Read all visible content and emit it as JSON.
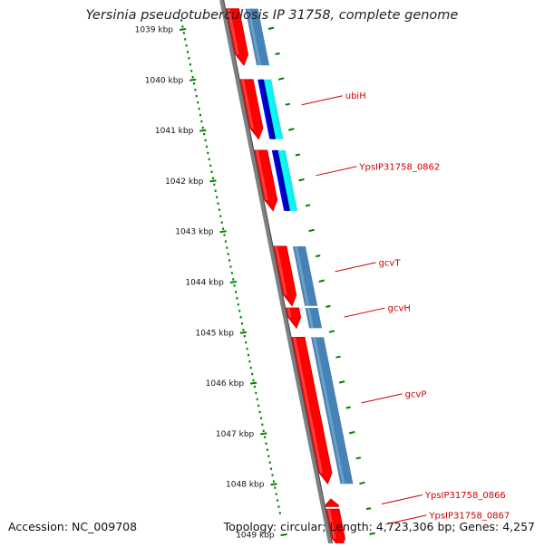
{
  "title": "Yersinia pseudotuberculosis IP 31758, complete genome",
  "footer": {
    "accession": "Accession: NC_009708",
    "topology": "Topology: circular; Length: 4,723,306 bp; Genes: 4,257"
  },
  "colors": {
    "background": "#ffffff",
    "backbone": "#808080",
    "backbone_edge": "#4a4a4a",
    "cds_forward": "#ff0000",
    "cds_forward_dark": "#cc0000",
    "cds_forward_light": "#ff6a6a",
    "steelblue": "#4682b4",
    "steelblue_light": "#86b2d8",
    "blue": "#0000ff",
    "navy": "#00008b",
    "cyan": "#00ffff",
    "cyan_dark": "#40d0d8",
    "gc_skew": "#008000",
    "label_text": "#cc0000",
    "label_line": "#cc0000",
    "kbp_text": "#111111"
  },
  "scale_labels": [
    {
      "text": "1039 kbp",
      "kbp": 1039
    },
    {
      "text": "1040 kbp",
      "kbp": 1040
    },
    {
      "text": "1041 kbp",
      "kbp": 1041
    },
    {
      "text": "1042 kbp",
      "kbp": 1042
    },
    {
      "text": "1043 kbp",
      "kbp": 1043
    },
    {
      "text": "1044 kbp",
      "kbp": 1044
    },
    {
      "text": "1045 kbp",
      "kbp": 1045
    },
    {
      "text": "1046 kbp",
      "kbp": 1046
    },
    {
      "text": "1047 kbp",
      "kbp": 1047
    },
    {
      "text": "1048 kbp",
      "kbp": 1048
    },
    {
      "text": "1049 kbp",
      "kbp": 1049
    }
  ],
  "features": [
    {
      "name": "cds-a",
      "start": 1038.6,
      "end": 1039.72,
      "strand": 1
    },
    {
      "name": "ubiH",
      "label": "ubiH",
      "start": 1040.0,
      "end": 1041.18,
      "strand": 1,
      "label_at": 1040.5
    },
    {
      "name": "YpsIP31758_0862",
      "label": "YpsIP31758_0862",
      "start": 1041.4,
      "end": 1042.6,
      "strand": 1,
      "label_at": 1041.9
    },
    {
      "name": "gcvT",
      "label": "gcvT",
      "start": 1043.3,
      "end": 1044.48,
      "strand": 1,
      "label_at": 1043.8
    },
    {
      "name": "gcvH",
      "label": "gcvH",
      "start": 1044.52,
      "end": 1044.92,
      "strand": 1,
      "label_at": 1044.7
    },
    {
      "name": "gcvP",
      "label": "gcvP",
      "start": 1045.1,
      "end": 1048.0,
      "strand": 1,
      "label_at": 1046.4
    },
    {
      "name": "YpsIP31758_0866",
      "label": "YpsIP31758_0866",
      "start": 1048.3,
      "end": 1048.45,
      "strand": -1,
      "label_at": 1048.4
    },
    {
      "name": "YpsIP31758_0867",
      "label": "YpsIP31758_0867",
      "start": 1048.5,
      "end": 1049.3,
      "strand": 1,
      "label_at": 1048.8
    }
  ],
  "blast_hits": [
    {
      "start": 1038.6,
      "end": 1039.72,
      "style": "steelblue"
    },
    {
      "start": 1040.0,
      "end": 1041.18,
      "style": "blue-cyan"
    },
    {
      "start": 1041.4,
      "end": 1042.6,
      "style": "blue-cyan"
    },
    {
      "start": 1043.3,
      "end": 1044.48,
      "style": "steelblue"
    },
    {
      "start": 1044.52,
      "end": 1044.92,
      "style": "steelblue"
    },
    {
      "start": 1045.1,
      "end": 1048.0,
      "style": "steelblue"
    }
  ],
  "gc_skew_dots_per_kbp": 8
}
